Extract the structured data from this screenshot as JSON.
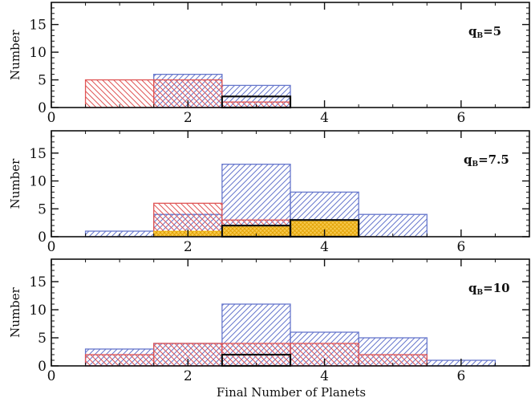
{
  "chart_data": {
    "type": "bar",
    "xlabel": "Final Number of Planets",
    "ylabel": "Number",
    "xlim": [
      0,
      7
    ],
    "ylim": [
      0,
      19
    ],
    "x_ticks": [
      0,
      2,
      4,
      6
    ],
    "y_ticks": [
      0,
      5,
      10,
      15
    ],
    "bin_width": 1,
    "colors": {
      "blue": "#6677cc",
      "red": "#e05555",
      "orange": "#f2b600",
      "black": "#111111"
    },
    "panels": [
      {
        "label_prefix": "q",
        "label_sub": "B",
        "label_suffix": "=5",
        "series": [
          {
            "style": "blue-hatch",
            "bins": [
              1,
              2,
              3
            ],
            "values": [
              0,
              6,
              4
            ]
          },
          {
            "style": "red-hatch",
            "bins": [
              1,
              2,
              3
            ],
            "values": [
              5,
              5,
              1
            ]
          },
          {
            "style": "black-outline",
            "bins": [
              3
            ],
            "values": [
              2
            ]
          }
        ]
      },
      {
        "label_prefix": "q",
        "label_sub": "B",
        "label_suffix": "=7.5",
        "series": [
          {
            "style": "blue-hatch",
            "bins": [
              1,
              2,
              3,
              4,
              5
            ],
            "values": [
              1,
              4,
              13,
              8,
              4
            ]
          },
          {
            "style": "red-hatch",
            "bins": [
              2,
              3
            ],
            "values": [
              6,
              3
            ]
          },
          {
            "style": "orange-hatch",
            "bins": [
              2,
              3,
              4
            ],
            "values": [
              1,
              2,
              3
            ]
          },
          {
            "style": "black-outline",
            "bins": [
              3,
              4
            ],
            "values": [
              2,
              3
            ]
          }
        ]
      },
      {
        "label_prefix": "q",
        "label_sub": "B",
        "label_suffix": "=10",
        "series": [
          {
            "style": "blue-hatch",
            "bins": [
              1,
              2,
              3,
              4,
              5,
              6
            ],
            "values": [
              3,
              4,
              11,
              6,
              5,
              1
            ]
          },
          {
            "style": "red-hatch",
            "bins": [
              1,
              2,
              3,
              4,
              5
            ],
            "values": [
              2,
              4,
              4,
              4,
              2
            ]
          },
          {
            "style": "black-outline",
            "bins": [
              3
            ],
            "values": [
              2
            ]
          }
        ]
      }
    ]
  }
}
